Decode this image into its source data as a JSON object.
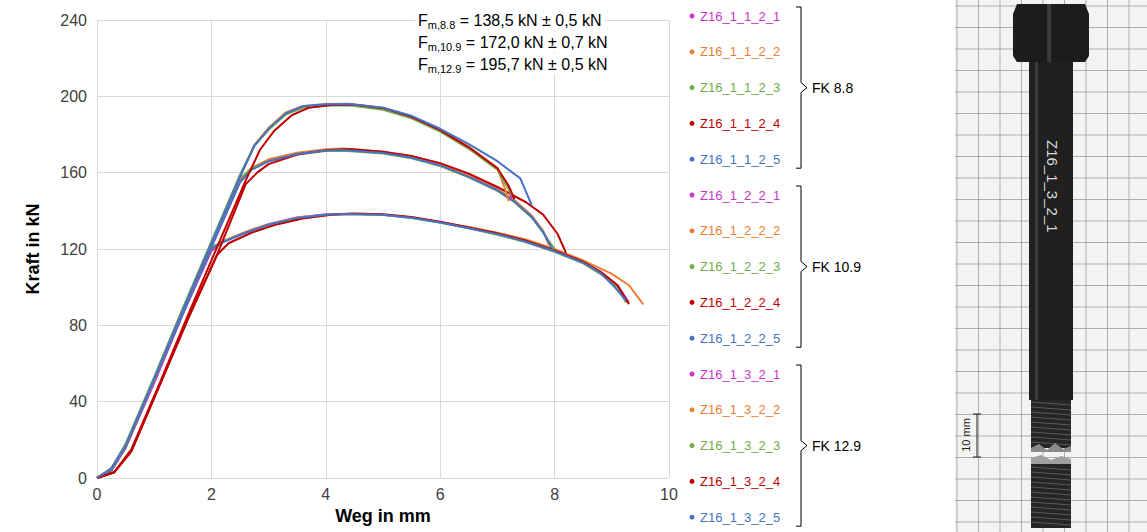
{
  "chart_data": {
    "type": "line",
    "x_label": "Weg in mm",
    "y_label": "Kraft in kN",
    "xlim": [
      0,
      10
    ],
    "xticks": [
      0,
      2,
      4,
      6,
      8,
      10
    ],
    "ylim": [
      0,
      240
    ],
    "yticks": [
      0,
      40,
      80,
      120,
      160,
      200,
      240
    ],
    "grid": true,
    "legend": "right",
    "marker": "none",
    "line_style": "solid",
    "annotations": [
      {
        "main": "F",
        "sub": "m,8.8",
        "rest": " = 138,5 kN ± 0,5 kN"
      },
      {
        "main": "F",
        "sub": "m,10.9",
        "rest": " = 172,0 kN ± 0,7 kN"
      },
      {
        "main": "F",
        "sub": "m,12.9",
        "rest": " = 195,7 kN ± 0,5 kN"
      }
    ],
    "groups": [
      {
        "label": "FK 8.8",
        "series": [
          {
            "name": "Z16_1_1_2_1",
            "color": "#CC33CC",
            "x": [
              0,
              0.25,
              0.5,
              1,
              1.5,
              2,
              2.2,
              2.6,
              3,
              3.5,
              4,
              4.4,
              5,
              5.5,
              6,
              6.5,
              7,
              7.5,
              8,
              8.5,
              8.8,
              9.1,
              9.3
            ],
            "values": [
              0,
              4,
              16,
              50,
              86,
              119,
              124,
              129,
              133,
              136.5,
              138.2,
              138.5,
              138,
              136.5,
              134,
              131,
              128,
              124,
              119,
              113,
              108,
              101,
              92
            ]
          },
          {
            "name": "Z16_1_1_2_2",
            "color": "#ED7D31",
            "x": [
              0,
              0.25,
              0.5,
              1,
              1.5,
              2,
              2.2,
              2.6,
              3,
              3.5,
              4,
              4.4,
              5,
              5.5,
              6,
              6.5,
              7,
              7.5,
              8,
              8.5,
              9,
              9.3,
              9.55
            ],
            "values": [
              0,
              4,
              16,
              51,
              87,
              120,
              124,
              129,
              133,
              136.5,
              138,
              138.4,
              138,
              136.5,
              134,
              131.5,
              128.5,
              125,
              120,
              114,
              107,
              101,
              91
            ]
          },
          {
            "name": "Z16_1_1_2_3",
            "color": "#70AD47",
            "x": [
              0,
              0.25,
              0.5,
              1,
              1.5,
              2,
              2.2,
              2.6,
              3,
              3.5,
              4,
              4.4,
              5,
              5.5,
              6,
              6.5,
              7,
              7.5,
              8,
              8.5,
              8.8,
              9.1,
              9.25
            ],
            "values": [
              0,
              5,
              17,
              52,
              88,
              121,
              124,
              128.5,
              132.5,
              136,
              138,
              138.3,
              137.8,
              136.2,
              133.8,
              130.8,
              127.5,
              123.5,
              118.5,
              112.5,
              107,
              100,
              92
            ]
          },
          {
            "name": "Z16_1_1_2_4",
            "color": "#C00000",
            "x": [
              0,
              0.3,
              0.6,
              1.1,
              1.6,
              2.1,
              2.3,
              2.7,
              3.1,
              3.6,
              4.1,
              4.5,
              5,
              5.5,
              6,
              6.5,
              7,
              7.5,
              8,
              8.5,
              8.8,
              9.1,
              9.3
            ],
            "values": [
              0,
              3,
              14,
              49,
              84,
              117,
              123,
              128.5,
              132.5,
              136,
              138,
              138.6,
              138.2,
              136.8,
              134.3,
              131.3,
              128.2,
              124.3,
              119.3,
              113.3,
              108.2,
              101,
              91
            ]
          },
          {
            "name": "Z16_1_1_2_5",
            "color": "#4472C4",
            "x": [
              0,
              0.25,
              0.5,
              1,
              1.5,
              2,
              2.2,
              2.6,
              3,
              3.5,
              4,
              4.4,
              5,
              5.5,
              6,
              6.5,
              7,
              7.5,
              8,
              8.5,
              8.8,
              9.05,
              9.25
            ],
            "values": [
              0,
              4,
              16,
              51,
              86,
              120,
              123.5,
              128.5,
              132.8,
              136.3,
              138,
              138.4,
              137.9,
              136.4,
              133.9,
              130.9,
              127.8,
              123.8,
              118.8,
              112.8,
              107.5,
              100,
              93
            ]
          }
        ]
      },
      {
        "label": "FK 10.9",
        "series": [
          {
            "name": "Z16_1_2_2_1",
            "color": "#CC33CC",
            "x": [
              0,
              0.25,
              0.5,
              1,
              1.5,
              2,
              2.5,
              2.7,
              3,
              3.5,
              4,
              4.3,
              5,
              5.5,
              6,
              6.5,
              7,
              7.3,
              7.6,
              7.8,
              7.95
            ],
            "values": [
              0,
              4,
              16,
              50,
              86,
              121,
              155,
              162,
              166.5,
              170,
              171.8,
              172,
              170.5,
              168,
              164,
              158,
              151,
              145,
              137,
              129,
              121
            ]
          },
          {
            "name": "Z16_1_2_2_2",
            "color": "#ED7D31",
            "x": [
              0,
              0.25,
              0.5,
              1,
              1.5,
              2,
              2.5,
              2.7,
              3,
              3.5,
              4,
              4.3,
              5,
              5.5,
              6,
              6.5,
              7,
              7.3,
              7.6,
              7.8,
              7.9
            ],
            "values": [
              0,
              4,
              16,
              51,
              87,
              122,
              156,
              162.5,
              167,
              170.5,
              172.3,
              172.6,
              171,
              168.5,
              164.5,
              158.5,
              151.5,
              145.5,
              137.5,
              129.5,
              122
            ]
          },
          {
            "name": "Z16_1_2_2_3",
            "color": "#70AD47",
            "x": [
              0,
              0.25,
              0.5,
              1,
              1.5,
              2,
              2.5,
              2.7,
              3,
              3.5,
              4,
              4.3,
              5,
              5.5,
              6,
              6.5,
              7,
              7.3,
              7.6,
              7.8,
              8.0
            ],
            "values": [
              0,
              5,
              17,
              52,
              88,
              123,
              157,
              162,
              166,
              169.5,
              171.3,
              171.5,
              170,
              167.5,
              163.5,
              157.5,
              150.5,
              144.5,
              136.5,
              128.5,
              120
            ]
          },
          {
            "name": "Z16_1_2_2_4",
            "color": "#C00000",
            "x": [
              0,
              0.3,
              0.6,
              1.1,
              1.6,
              2.1,
              2.6,
              2.8,
              3,
              3.5,
              4,
              4.4,
              5,
              5.5,
              6,
              6.5,
              7,
              7.5,
              7.8,
              8.05,
              8.2
            ],
            "values": [
              0,
              3,
              14,
              49,
              84,
              117,
              154,
              160,
              164.5,
              169.5,
              171.8,
              172.4,
              171,
              168.8,
              165,
              159.5,
              152.5,
              144.5,
              138,
              128,
              118
            ]
          },
          {
            "name": "Z16_1_2_2_5",
            "color": "#4472C4",
            "x": [
              0,
              0.25,
              0.5,
              1,
              1.5,
              2,
              2.5,
              2.7,
              3,
              3.5,
              4,
              4.3,
              5,
              5.5,
              6,
              6.5,
              7,
              7.3,
              7.6,
              7.8,
              7.95
            ],
            "values": [
              0,
              4,
              16,
              51,
              86,
              121,
              155,
              161.5,
              166,
              169.8,
              171.6,
              171.9,
              170.3,
              167.8,
              163.8,
              157.8,
              150.8,
              144.8,
              136.8,
              128.8,
              120.5
            ]
          }
        ]
      },
      {
        "label": "FK 12.9",
        "series": [
          {
            "name": "Z16_1_3_2_1",
            "color": "#CC33CC",
            "x": [
              0,
              0.25,
              0.5,
              1,
              1.5,
              2,
              2.5,
              2.75,
              3,
              3.3,
              3.6,
              4,
              4.4,
              5,
              5.5,
              6,
              6.5,
              7,
              7.2,
              7.25
            ],
            "values": [
              0,
              5,
              17,
              52,
              88,
              123,
              158,
              174,
              183,
              191,
              194.5,
              195.6,
              195.7,
              193.5,
              189,
              182,
              173,
              162,
              152,
              146
            ]
          },
          {
            "name": "Z16_1_3_2_2",
            "color": "#ED7D31",
            "x": [
              0,
              0.25,
              0.5,
              1,
              1.5,
              2,
              2.5,
              2.75,
              3,
              3.3,
              3.6,
              4,
              4.4,
              5,
              5.5,
              6,
              6.5,
              7,
              7.15,
              7.2
            ],
            "values": [
              0,
              5,
              17,
              52,
              88,
              123,
              158,
              174.5,
              183.5,
              191.5,
              195,
              196,
              196.1,
              194,
              189.5,
              182.5,
              173.5,
              162.5,
              150,
              145
            ]
          },
          {
            "name": "Z16_1_3_2_3",
            "color": "#70AD47",
            "x": [
              0,
              0.25,
              0.5,
              1,
              1.5,
              2,
              2.5,
              2.75,
              3,
              3.3,
              3.6,
              4,
              4.4,
              5,
              5.5,
              6,
              6.5,
              7,
              7.2,
              7.3
            ],
            "values": [
              0,
              5,
              18,
              53,
              89,
              124,
              159,
              174,
              182.5,
              190.5,
              194,
              195.2,
              195.3,
              193,
              188.5,
              181.5,
              172.5,
              161.5,
              151,
              146
            ]
          },
          {
            "name": "Z16_1_3_2_4",
            "color": "#C00000",
            "x": [
              0,
              0.3,
              0.6,
              1.1,
              1.6,
              2.1,
              2.6,
              2.85,
              3.1,
              3.4,
              3.7,
              4.1,
              4.5,
              5,
              5.5,
              6,
              6.5,
              7,
              7.2,
              7.3
            ],
            "values": [
              0,
              3,
              15,
              50,
              86,
              121,
              156,
              172,
              182,
              190,
              194,
              195.4,
              195.6,
              193.8,
              189.3,
              182.3,
              173.3,
              162.3,
              153,
              146
            ]
          },
          {
            "name": "Z16_1_3_2_5",
            "color": "#4472C4",
            "x": [
              0,
              0.25,
              0.5,
              1,
              1.5,
              2,
              2.5,
              2.75,
              3,
              3.3,
              3.6,
              4,
              4.4,
              5,
              5.5,
              6,
              6.5,
              7,
              7.4,
              7.6
            ],
            "values": [
              0,
              5,
              17,
              52,
              88,
              123,
              158,
              174,
              183,
              191,
              194.8,
              195.9,
              196,
              194,
              189.8,
              183,
              175,
              166,
              157,
              143
            ]
          }
        ]
      }
    ]
  },
  "photo": {
    "label": "Z16_1_3_2_1",
    "scale": "10 mm"
  }
}
